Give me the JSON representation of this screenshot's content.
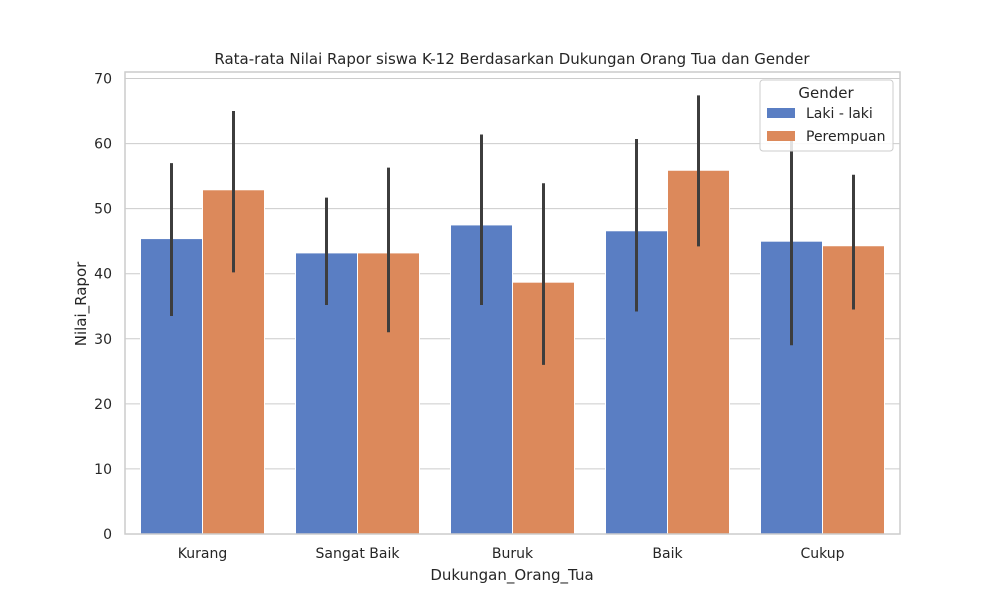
{
  "chart_data": {
    "type": "bar",
    "title": "Rata-rata Nilai Rapor siswa K-12 Berdasarkan Dukungan Orang Tua dan Gender",
    "xlabel": "Dukungan_Orang_Tua",
    "ylabel": "Nilai_Rapor",
    "ylim": [
      0,
      71
    ],
    "yticks": [
      0,
      10,
      20,
      30,
      40,
      50,
      60,
      70
    ],
    "grid": true,
    "categories": [
      "Kurang",
      "Sangat Baik",
      "Buruk",
      "Baik",
      "Cukup"
    ],
    "series": [
      {
        "name": "Laki - laki",
        "color": "#5a7ec3",
        "values": [
          45.4,
          43.2,
          47.5,
          46.6,
          45.0
        ],
        "err_low": [
          33.5,
          35.2,
          35.2,
          34.2,
          29.0
        ],
        "err_high": [
          57.0,
          51.7,
          61.4,
          60.7,
          60.5
        ]
      },
      {
        "name": "Perempuan",
        "color": "#dc895b",
        "values": [
          52.9,
          43.2,
          38.7,
          55.9,
          44.3
        ],
        "err_low": [
          40.2,
          31.0,
          26.0,
          44.2,
          34.5
        ],
        "err_high": [
          65.0,
          56.3,
          53.9,
          67.4,
          55.2
        ]
      }
    ],
    "legend": {
      "title": "Gender",
      "placement": "top-right"
    }
  }
}
